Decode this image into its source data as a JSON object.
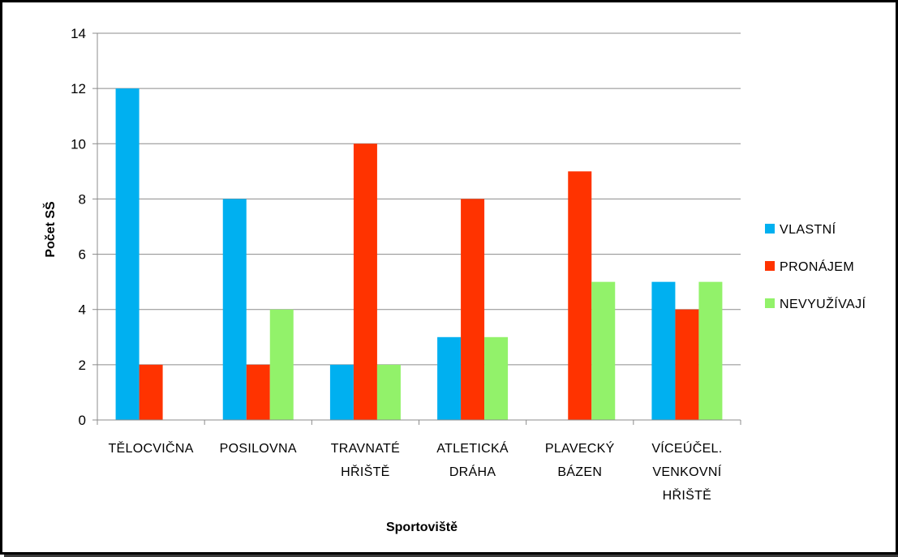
{
  "chart_data": {
    "type": "bar",
    "title": "",
    "xlabel": "Sportoviště",
    "ylabel": "Počet SŠ",
    "ylim": [
      0,
      14
    ],
    "yticks": [
      0,
      2,
      4,
      6,
      8,
      10,
      12,
      14
    ],
    "grid": true,
    "legend_position": "right",
    "categories": [
      [
        "TĚLOCVIČNA"
      ],
      [
        "POSILOVNA"
      ],
      [
        "TRAVNATÉ",
        "HŘIŠTĚ"
      ],
      [
        "ATLETICKÁ",
        "DRÁHA"
      ],
      [
        "PLAVECKÝ",
        "BÁZEN"
      ],
      [
        "VÍCEÚČEL.",
        "VENKOVNÍ",
        "HŘIŠTĚ"
      ]
    ],
    "series": [
      {
        "name": "VLASTNÍ",
        "color": "#00b0f0",
        "values": [
          12,
          8,
          2,
          3,
          0,
          5
        ]
      },
      {
        "name": "PRONÁJEM",
        "color": "#ff3300",
        "values": [
          2,
          2,
          10,
          8,
          9,
          4
        ]
      },
      {
        "name": "NEVYUŽÍVAJÍ",
        "color": "#92f26a",
        "values": [
          0,
          4,
          2,
          3,
          5,
          5
        ]
      }
    ]
  }
}
